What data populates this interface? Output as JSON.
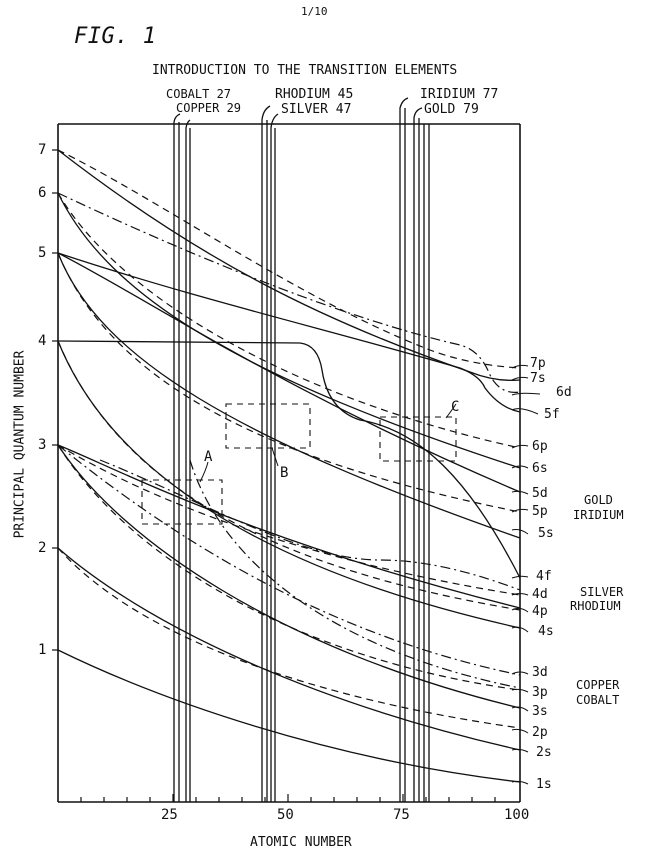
{
  "page_number": "1/10",
  "figure_label": "FIG. 1",
  "title": "INTRODUCTION TO THE TRANSITION ELEMENTS",
  "element_labels": [
    "COBALT 27",
    "COPPER 29",
    "RHODIUM 45",
    "SILVER 47",
    "IRIDIUM 77",
    "GOLD 79"
  ],
  "y_axis_label": "PRINCIPAL QUANTUM NUMBER",
  "x_axis_label": "ATOMIC NUMBER",
  "y_ticks": [
    "7",
    "6",
    "5",
    "4",
    "3",
    "2",
    "1"
  ],
  "x_ticks": [
    "25",
    "50",
    "75",
    "100"
  ],
  "orbital_labels": [
    "7p",
    "7s",
    "6d",
    "5f",
    "6p",
    "6s",
    "5d",
    "5p",
    "5s",
    "4f",
    "4d",
    "4p",
    "4s",
    "3d",
    "3p",
    "3s",
    "2p",
    "2s",
    "1s"
  ],
  "region_labels": [
    "A",
    "B",
    "C"
  ],
  "group_labels": {
    "gold_iridium": [
      "GOLD",
      "IRIDIUM"
    ],
    "silver_rhodium": [
      "SILVER",
      "RHODIUM"
    ],
    "copper_cobalt": [
      "COPPER",
      "COBALT"
    ]
  }
}
